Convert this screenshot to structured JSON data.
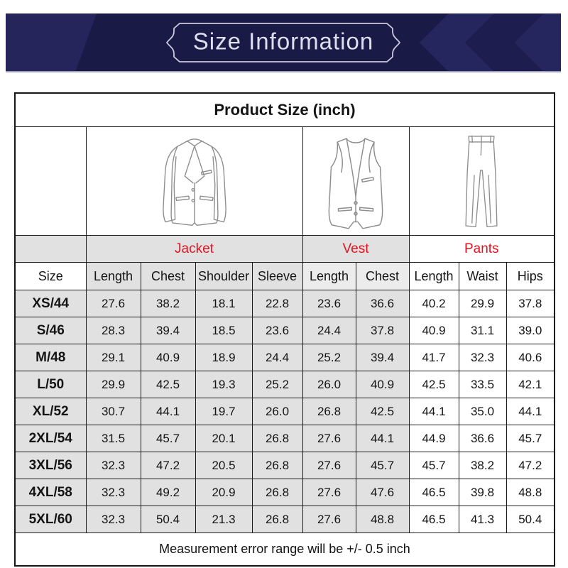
{
  "banner": {
    "title": "Size Information"
  },
  "table": {
    "title": "Product Size  (inch)",
    "groups": [
      {
        "label": "Jacket",
        "span": 4
      },
      {
        "label": "Vest",
        "span": 2
      },
      {
        "label": "Pants",
        "span": 3
      }
    ],
    "columns": [
      "Size",
      "Length",
      "Chest",
      "Shoulder",
      "Sleeve",
      "Length",
      "Chest",
      "Length",
      "Waist",
      "Hips"
    ],
    "rows": [
      {
        "size": "XS/44",
        "values": [
          "27.6",
          "38.2",
          "18.1",
          "22.8",
          "23.6",
          "36.6",
          "40.2",
          "29.9",
          "37.8"
        ]
      },
      {
        "size": "S/46",
        "values": [
          "28.3",
          "39.4",
          "18.5",
          "23.6",
          "24.4",
          "37.8",
          "40.9",
          "31.1",
          "39.0"
        ]
      },
      {
        "size": "M/48",
        "values": [
          "29.1",
          "40.9",
          "18.9",
          "24.4",
          "25.2",
          "39.4",
          "41.7",
          "32.3",
          "40.6"
        ]
      },
      {
        "size": "L/50",
        "values": [
          "29.9",
          "42.5",
          "19.3",
          "25.2",
          "26.0",
          "40.9",
          "42.5",
          "33.5",
          "42.1"
        ]
      },
      {
        "size": "XL/52",
        "values": [
          "30.7",
          "44.1",
          "19.7",
          "26.0",
          "26.8",
          "42.5",
          "44.1",
          "35.0",
          "44.1"
        ]
      },
      {
        "size": "2XL/54",
        "values": [
          "31.5",
          "45.7",
          "20.1",
          "26.8",
          "27.6",
          "44.1",
          "44.9",
          "36.6",
          "45.7"
        ]
      },
      {
        "size": "3XL/56",
        "values": [
          "32.3",
          "47.2",
          "20.5",
          "26.8",
          "27.6",
          "45.7",
          "45.7",
          "38.2",
          "47.2"
        ]
      },
      {
        "size": "4XL/58",
        "values": [
          "32.3",
          "49.2",
          "20.9",
          "26.8",
          "27.6",
          "47.6",
          "46.5",
          "39.8",
          "48.8"
        ]
      },
      {
        "size": "5XL/60",
        "values": [
          "32.3",
          "50.4",
          "21.3",
          "26.8",
          "27.6",
          "48.8",
          "46.5",
          "41.3",
          "50.4"
        ]
      }
    ],
    "note": "Measurement error range will be +/- 0.5 inch"
  },
  "images": {
    "jacket": "jacket-line-drawing",
    "vest": "vest-line-drawing",
    "pants": "pants-line-drawing"
  },
  "colors": {
    "banner_bg": "#1a1a47",
    "banner_shape_light": "#26265f",
    "banner_shape_dark": "#1d1d4f",
    "banner_frame": "#c7c9dd",
    "banner_text": "#dddfee",
    "accent_red": "#e01421",
    "cell_gray": "#e1e1e1",
    "cell_white": "#ffffff",
    "border": "#1c1c1c"
  },
  "chart_data": {
    "type": "table",
    "title": "Product Size (inch)",
    "unit": "inch",
    "column_groups": [
      {
        "name": "Jacket",
        "columns": [
          "Length",
          "Chest",
          "Shoulder",
          "Sleeve"
        ]
      },
      {
        "name": "Vest",
        "columns": [
          "Length",
          "Chest"
        ]
      },
      {
        "name": "Pants",
        "columns": [
          "Length",
          "Waist",
          "Hips"
        ]
      }
    ],
    "row_header": "Size",
    "rows": [
      [
        "XS/44",
        27.6,
        38.2,
        18.1,
        22.8,
        23.6,
        36.6,
        40.2,
        29.9,
        37.8
      ],
      [
        "S/46",
        28.3,
        39.4,
        18.5,
        23.6,
        24.4,
        37.8,
        40.9,
        31.1,
        39.0
      ],
      [
        "M/48",
        29.1,
        40.9,
        18.9,
        24.4,
        25.2,
        39.4,
        41.7,
        32.3,
        40.6
      ],
      [
        "L/50",
        29.9,
        42.5,
        19.3,
        25.2,
        26.0,
        40.9,
        42.5,
        33.5,
        42.1
      ],
      [
        "XL/52",
        30.7,
        44.1,
        19.7,
        26.0,
        26.8,
        42.5,
        44.1,
        35.0,
        44.1
      ],
      [
        "2XL/54",
        31.5,
        45.7,
        20.1,
        26.8,
        27.6,
        44.1,
        44.9,
        36.6,
        45.7
      ],
      [
        "3XL/56",
        32.3,
        47.2,
        20.5,
        26.8,
        27.6,
        45.7,
        45.7,
        38.2,
        47.2
      ],
      [
        "4XL/58",
        32.3,
        49.2,
        20.9,
        26.8,
        27.6,
        47.6,
        46.5,
        39.8,
        48.8
      ],
      [
        "5XL/60",
        32.3,
        50.4,
        21.3,
        26.8,
        27.6,
        48.8,
        46.5,
        41.3,
        50.4
      ]
    ],
    "note": "Measurement error range will be +/- 0.5 inch"
  }
}
